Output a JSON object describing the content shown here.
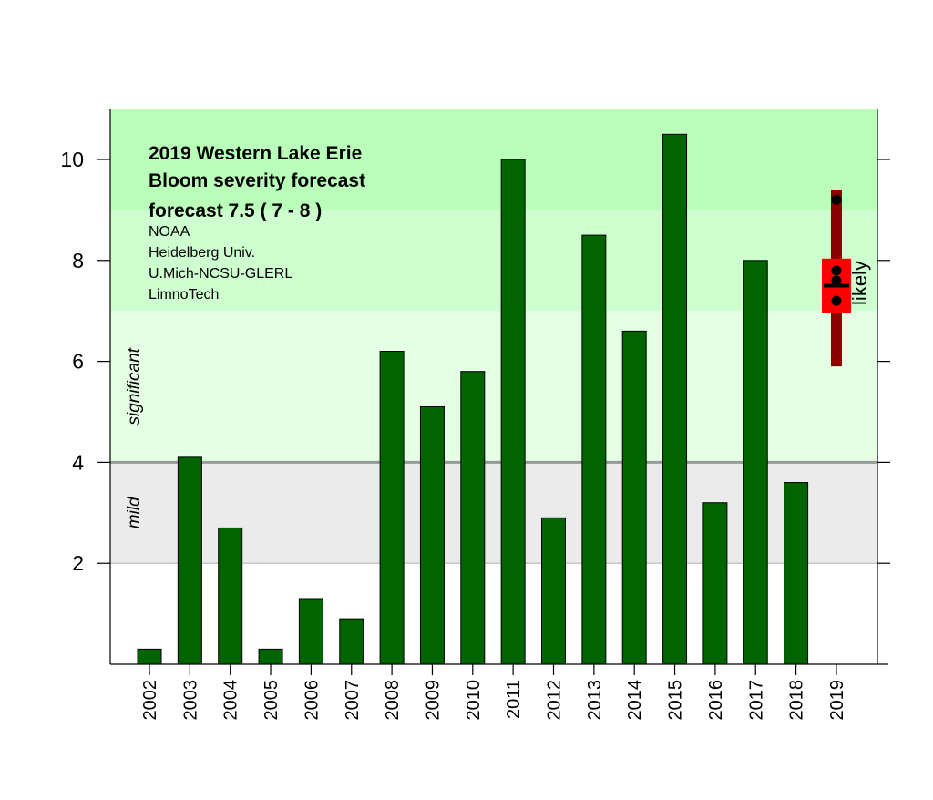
{
  "chart_data": {
    "type": "bar",
    "title_lines": [
      "2019  Western Lake Erie",
      "Bloom severity forecast",
      "forecast  7.5 ( 7 - 8 )"
    ],
    "credits": [
      "NOAA",
      "Heidelberg Univ.",
      "U.Mich-NCSU-GLERL",
      "LimnoTech"
    ],
    "xlabel": "",
    "ylabel": "",
    "ylim": [
      0,
      11
    ],
    "yticks": [
      2,
      4,
      6,
      8,
      10
    ],
    "categories": [
      "2002",
      "2003",
      "2004",
      "2005",
      "2006",
      "2007",
      "2008",
      "2009",
      "2010",
      "2011",
      "2012",
      "2013",
      "2014",
      "2015",
      "2016",
      "2017",
      "2018",
      "2019"
    ],
    "values": [
      0.3,
      4.1,
      2.7,
      0.3,
      1.3,
      0.9,
      6.2,
      5.1,
      5.8,
      10.0,
      2.9,
      8.5,
      6.6,
      10.5,
      3.2,
      8.0,
      3.6,
      null
    ],
    "bar_color": "#006400",
    "severity_zones": [
      {
        "label": "",
        "from": 0,
        "to": 2,
        "color": "#ffffff"
      },
      {
        "label": "mild",
        "from": 2,
        "to": 4,
        "color": "#ebebeb"
      },
      {
        "label": "significant",
        "from": 4,
        "to": 7,
        "color": "#e5ffe5"
      },
      {
        "label": "",
        "from": 7,
        "to": 9,
        "color": "#ceffce"
      },
      {
        "label": "",
        "from": 9,
        "to": 11,
        "color": "#b9ffb9"
      }
    ],
    "zone_labels": {
      "mild": "mild",
      "significant": "significant"
    },
    "forecast": {
      "year": "2019",
      "label": "likely",
      "value": 7.5,
      "likely_range": [
        7,
        8
      ],
      "possible_range": [
        5.9,
        9.4
      ],
      "model_points": [
        9.2,
        7.8,
        7.6,
        7.2
      ],
      "likely_color": "#ff0000",
      "range_color": "#8b0000"
    }
  }
}
